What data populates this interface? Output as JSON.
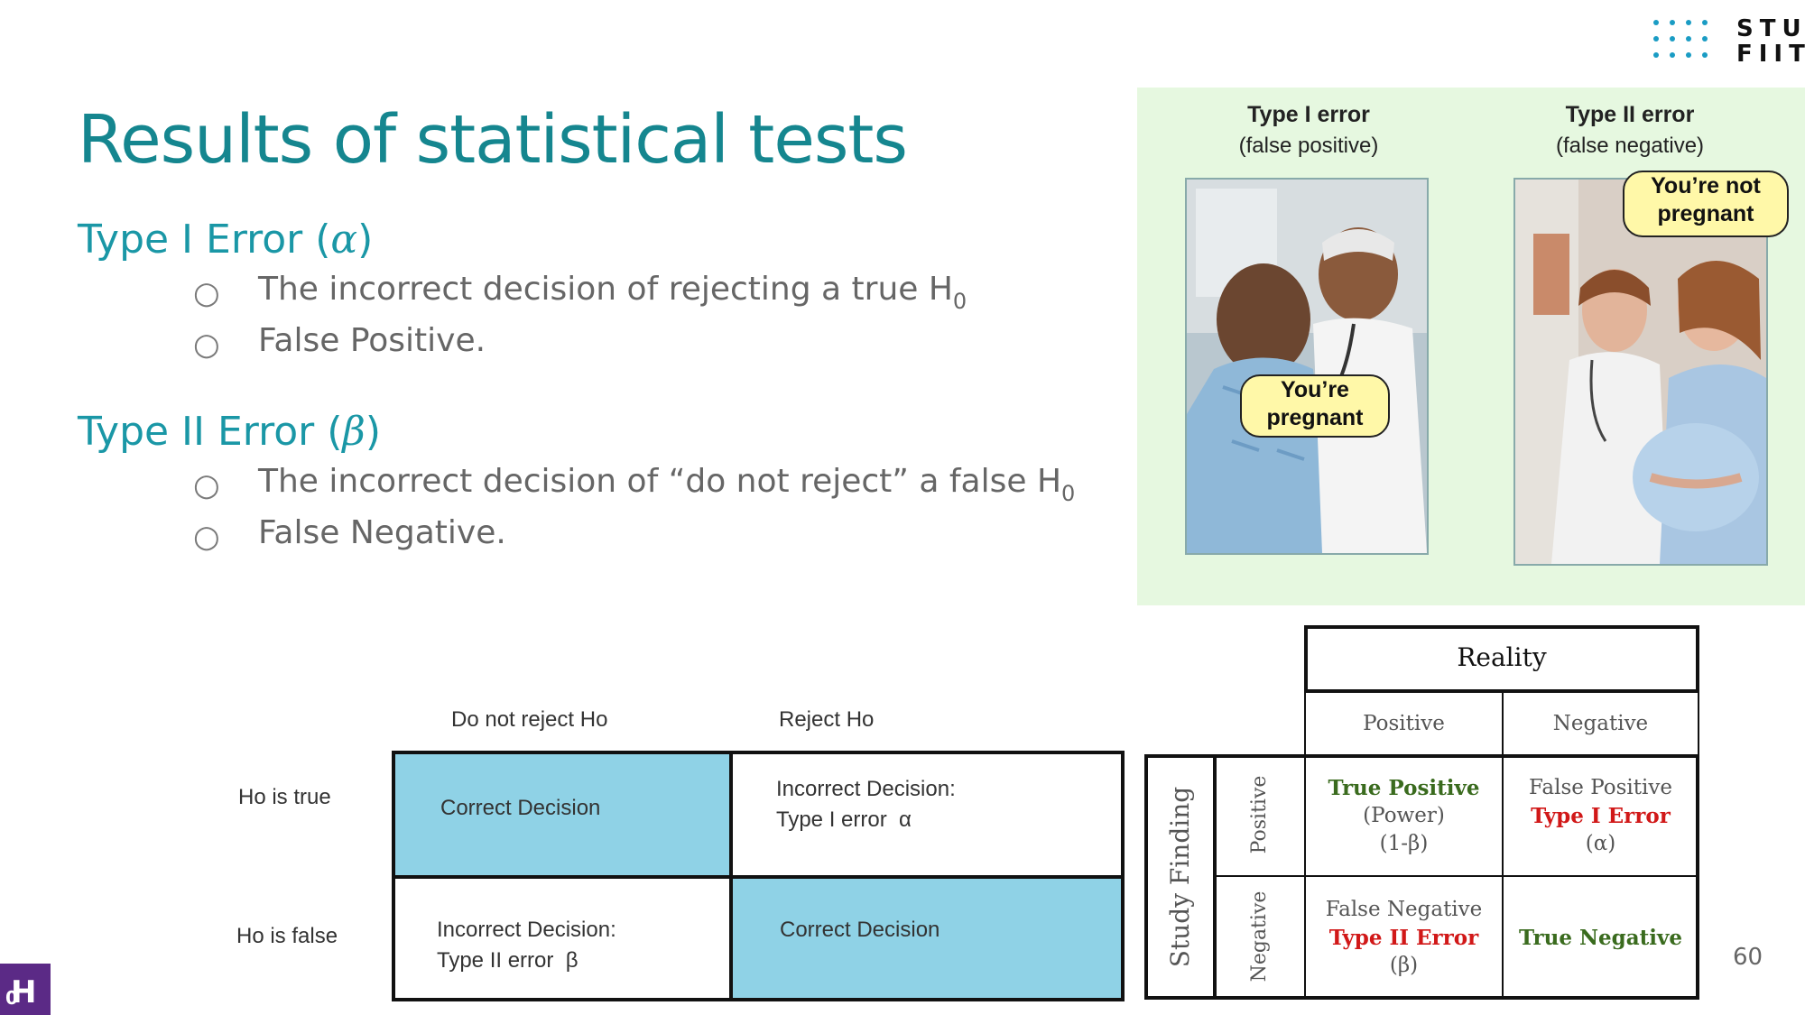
{
  "logo": {
    "line1": "STU",
    "line2": "FIIT"
  },
  "slide": {
    "title": "Results of statistical tests",
    "page_number": "60",
    "footer_badge": "H",
    "footer_badge_sub": "0"
  },
  "type1": {
    "heading": "Type I Error (",
    "symbol": "α",
    "heading_close": ")",
    "bullets": [
      {
        "text": "The incorrect decision of rejecting a true H",
        "sub": "0"
      },
      {
        "text": "False Positive.",
        "sub": ""
      }
    ]
  },
  "type2": {
    "heading": "Type II Error (",
    "symbol": "β",
    "heading_close": ")",
    "bullets": [
      {
        "text": "The incorrect decision of “do not reject” a false H",
        "sub": "0"
      },
      {
        "text": "False Negative.",
        "sub": ""
      }
    ]
  },
  "bullet_marker": "○",
  "photo_panel": {
    "left_title": "Type I error",
    "left_subtitle": "(false positive)",
    "left_speech_l1": "You’re",
    "left_speech_l2": "pregnant",
    "right_title": "Type II error",
    "right_subtitle": "(false negative)",
    "right_speech_l1": "You’re not",
    "right_speech_l2": "pregnant"
  },
  "decision_table": {
    "col_headers": [
      "Do not reject Ho",
      "Reject Ho"
    ],
    "row_headers": [
      "Ho is true",
      "Ho is false"
    ],
    "cells": [
      [
        "Correct Decision",
        "Incorrect Decision:\nType I error  α"
      ],
      [
        "Incorrect Decision:\nType II error  β",
        "Correct Decision"
      ]
    ],
    "highlight_color": "#8fd2e6"
  },
  "reality_table": {
    "reality_label": "Reality",
    "study_label": "Study Finding",
    "col_headers": [
      "Positive",
      "Negative"
    ],
    "row_headers": [
      "Positive",
      "Negative"
    ],
    "tp": {
      "l1": "True Positive",
      "l2": "(Power)",
      "l3": "(1-β)"
    },
    "fp": {
      "l1": "False Positive",
      "l2": "Type I Error",
      "l3": "(α)"
    },
    "fn": {
      "l1": "False Negative",
      "l2": "Type II Error",
      "l3": "(β)"
    },
    "tn": {
      "l1": "True Negative"
    },
    "green": "#3a6b1e",
    "red": "#d11818"
  }
}
